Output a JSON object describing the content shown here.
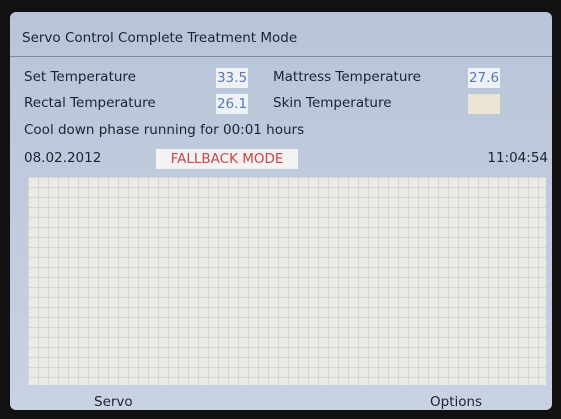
{
  "header": {
    "title": "Servo Control Complete Treatment Mode"
  },
  "fields": [
    {
      "label": "Set Temperature",
      "value": "33.5"
    },
    {
      "label": "Mattress Temperature",
      "value": "27.6"
    },
    {
      "label": "Rectal Temperature",
      "value": "26.1"
    },
    {
      "label": "Skin Temperature"
    }
  ],
  "status": "Cool down phase running for 00:01 hours",
  "date": "08.02.2012",
  "mode": "FALLBACK MODE",
  "time": "11:04:54",
  "buttons": [
    "Servo",
    "Options"
  ]
}
